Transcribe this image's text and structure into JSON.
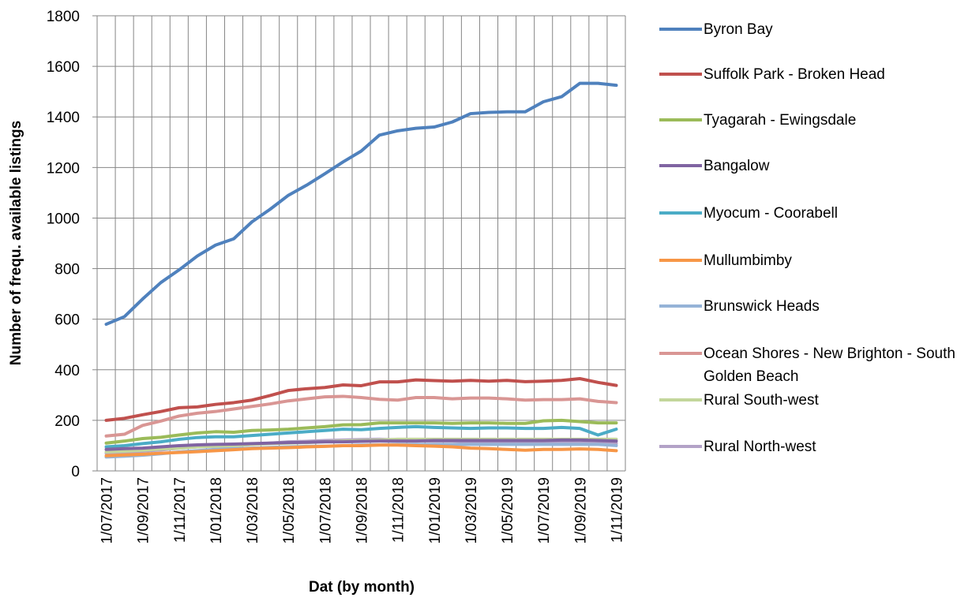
{
  "chart_data": {
    "type": "line",
    "y_label": "Number of  frequ. available listings",
    "x_label": "Dat (by month)",
    "categories": [
      "1/07/2017",
      null,
      "1/09/2017",
      null,
      "1/11/2017",
      null,
      "1/01/2018",
      null,
      "1/03/2018",
      null,
      "1/05/2018",
      null,
      "1/07/2018",
      null,
      "1/09/2018",
      null,
      "1/11/2018",
      null,
      "1/01/2019",
      null,
      "1/03/2019",
      null,
      "1/05/2019",
      null,
      "1/07/2019",
      null,
      "1/09/2019",
      null,
      "1/11/2019"
    ],
    "ylim": [
      0,
      1800
    ],
    "yticks": [
      0,
      200,
      400,
      600,
      800,
      1000,
      1200,
      1400,
      1600,
      1800
    ],
    "grid": true,
    "legend": "right",
    "series": [
      {
        "name": "Byron Bay",
        "color": "#4f81bd",
        "values": [
          580,
          610,
          680,
          745,
          795,
          850,
          893,
          918,
          985,
          1035,
          1090,
          1130,
          1175,
          1222,
          1265,
          1328,
          1345,
          1355,
          1360,
          1380,
          1413,
          1418,
          1420,
          1420,
          1460,
          1480,
          1533,
          1533,
          1525
        ]
      },
      {
        "name": "Suffolk Park - Broken Head",
        "color": "#c0504d",
        "values": [
          200,
          208,
          222,
          235,
          250,
          253,
          263,
          270,
          280,
          298,
          318,
          325,
          330,
          340,
          337,
          352,
          352,
          360,
          357,
          355,
          358,
          355,
          358,
          353,
          355,
          358,
          365,
          350,
          338
        ]
      },
      {
        "name": "Tyagarah - Ewingsdale",
        "color": "#9bbb59",
        "values": [
          110,
          118,
          128,
          133,
          142,
          150,
          155,
          153,
          160,
          162,
          165,
          170,
          175,
          182,
          183,
          190,
          190,
          190,
          190,
          188,
          190,
          190,
          188,
          188,
          198,
          200,
          195,
          190,
          190
        ]
      },
      {
        "name": "Bangalow",
        "color": "#8064a2",
        "values": [
          85,
          88,
          90,
          95,
          100,
          103,
          105,
          106,
          108,
          110,
          112,
          113,
          115,
          115,
          117,
          118,
          118,
          118,
          120,
          120,
          120,
          120,
          120,
          120,
          120,
          122,
          122,
          120,
          118
        ]
      },
      {
        "name": "Myocum - Coorabell",
        "color": "#4bacc6",
        "values": [
          95,
          100,
          108,
          115,
          125,
          132,
          135,
          135,
          140,
          145,
          150,
          155,
          160,
          165,
          163,
          168,
          172,
          175,
          172,
          170,
          168,
          170,
          170,
          168,
          168,
          172,
          168,
          142,
          165
        ]
      },
      {
        "name": "Mullumbimby",
        "color": "#f79646",
        "values": [
          60,
          63,
          66,
          70,
          73,
          76,
          80,
          84,
          88,
          90,
          92,
          95,
          97,
          100,
          100,
          102,
          102,
          100,
          98,
          95,
          90,
          88,
          85,
          82,
          85,
          85,
          87,
          85,
          80
        ]
      },
      {
        "name": "Brunswick Heads",
        "color": "#95b3d7",
        "values": [
          55,
          58,
          62,
          68,
          75,
          80,
          85,
          88,
          90,
          93,
          95,
          97,
          98,
          100,
          102,
          103,
          105,
          105,
          105,
          105,
          105,
          105,
          105,
          105,
          105,
          105,
          105,
          105,
          100
        ]
      },
      {
        "name": "Ocean Shores - New Brighton - South Golden Beach",
        "color": "#d99694",
        "values": [
          138,
          145,
          180,
          197,
          217,
          228,
          235,
          245,
          255,
          265,
          277,
          285,
          293,
          295,
          290,
          283,
          280,
          290,
          290,
          285,
          288,
          288,
          285,
          280,
          282,
          282,
          285,
          275,
          270
        ]
      },
      {
        "name": "Rural South-west",
        "color": "#c3d69b",
        "values": [
          75,
          78,
          82,
          87,
          90,
          95,
          98,
          100,
          105,
          108,
          110,
          112,
          115,
          118,
          120,
          122,
          125,
          125,
          125,
          125,
          125,
          125,
          125,
          125,
          125,
          125,
          125,
          125,
          125
        ]
      },
      {
        "name": "Rural North-west",
        "color": "#b3a2c7",
        "values": [
          70,
          72,
          78,
          83,
          90,
          95,
          97,
          100,
          105,
          110,
          115,
          117,
          120,
          122,
          124,
          125,
          123,
          120,
          118,
          118,
          115,
          113,
          112,
          110,
          112,
          112,
          110,
          108,
          108
        ]
      }
    ]
  }
}
